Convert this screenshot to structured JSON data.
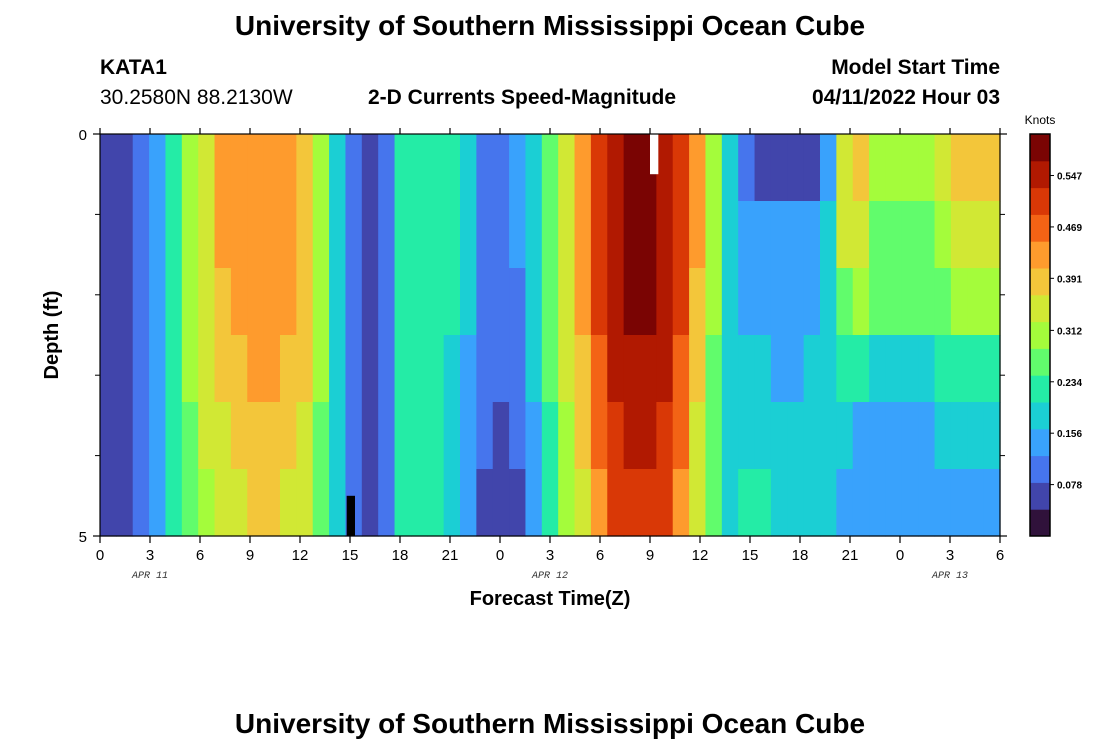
{
  "titles": {
    "main": "University of Southern Mississippi Ocean Cube",
    "repeat": "University of Southern Mississippi Ocean Cube"
  },
  "header": {
    "station": "KATA1",
    "coords": "30.2580N  88.2130W",
    "product": "2-D Currents Speed-Magnitude",
    "start_label": "Model Start Time",
    "start_value": "04/11/2022 Hour 03"
  },
  "chart_data": {
    "type": "heatmap",
    "title": "2-D Currents Speed-Magnitude",
    "xlabel": "Forecast Time(Z)",
    "ylabel": "Depth (ft)",
    "x_ticks": [
      "0",
      "3",
      "6",
      "9",
      "12",
      "15",
      "18",
      "21",
      "0",
      "3",
      "6",
      "9",
      "12",
      "15",
      "18",
      "21",
      "0",
      "3",
      "6"
    ],
    "x_range_hours": [
      0,
      54
    ],
    "date_labels": [
      {
        "text": "APR 11",
        "hour": 3
      },
      {
        "text": "APR 12",
        "hour": 27
      },
      {
        "text": "APR 13",
        "hour": 51
      }
    ],
    "y_range": [
      0,
      5
    ],
    "y_tick_labels": [
      {
        "value": 0,
        "label": "0"
      },
      {
        "value": 5,
        "label": "5"
      }
    ],
    "y_minor_ticks": [
      1,
      2,
      3,
      4
    ],
    "colorbar": {
      "unit": "Knots",
      "min": 0,
      "max": 0.61,
      "ticks": [
        "0.547",
        "0.469",
        "0.391",
        "0.312",
        "0.234",
        "0.156",
        "0.078"
      ],
      "colors": [
        "#30123b",
        "#4145ab",
        "#4675ed",
        "#39a2fc",
        "#1bcfd4",
        "#24eca6",
        "#61fc6c",
        "#a4fc3b",
        "#d1e834",
        "#f3c63a",
        "#fe9b2d",
        "#f36315",
        "#d93806",
        "#b11901",
        "#7a0403"
      ]
    },
    "depth_layers": [
      [
        0.05,
        0.08,
        0.11,
        0.15,
        0.22,
        0.3,
        0.36,
        0.41,
        0.43,
        0.44,
        0.44,
        0.43,
        0.4,
        0.3,
        0.2,
        0.09,
        0.07,
        0.12,
        0.22,
        0.23,
        0.23,
        0.21,
        0.17,
        0.12,
        0.1,
        0.13,
        0.2,
        0.27,
        0.36,
        0.43,
        0.51,
        0.56,
        0.58,
        0.58,
        0.56,
        0.51,
        0.41,
        0.3,
        0.2,
        0.12,
        0.08,
        0.06,
        0.05,
        0.07,
        0.14,
        0.34,
        0.38,
        0.32,
        0.3,
        0.32,
        0.3,
        0.34,
        0.38,
        0.4,
        0.4
      ],
      [
        0.05,
        0.08,
        0.11,
        0.15,
        0.22,
        0.3,
        0.36,
        0.41,
        0.43,
        0.44,
        0.44,
        0.43,
        0.4,
        0.3,
        0.2,
        0.09,
        0.07,
        0.12,
        0.22,
        0.23,
        0.23,
        0.21,
        0.17,
        0.12,
        0.1,
        0.13,
        0.2,
        0.27,
        0.36,
        0.43,
        0.51,
        0.56,
        0.58,
        0.58,
        0.56,
        0.51,
        0.41,
        0.3,
        0.2,
        0.14,
        0.14,
        0.14,
        0.13,
        0.14,
        0.19,
        0.33,
        0.34,
        0.27,
        0.26,
        0.27,
        0.27,
        0.3,
        0.33,
        0.35,
        0.35
      ],
      [
        0.05,
        0.08,
        0.11,
        0.15,
        0.22,
        0.3,
        0.35,
        0.4,
        0.42,
        0.43,
        0.43,
        0.42,
        0.39,
        0.3,
        0.2,
        0.09,
        0.07,
        0.12,
        0.22,
        0.23,
        0.23,
        0.21,
        0.17,
        0.12,
        0.1,
        0.12,
        0.19,
        0.26,
        0.35,
        0.42,
        0.5,
        0.55,
        0.57,
        0.57,
        0.55,
        0.5,
        0.4,
        0.29,
        0.2,
        0.15,
        0.15,
        0.14,
        0.14,
        0.15,
        0.19,
        0.28,
        0.29,
        0.26,
        0.25,
        0.26,
        0.26,
        0.28,
        0.3,
        0.31,
        0.31
      ],
      [
        0.05,
        0.08,
        0.11,
        0.15,
        0.22,
        0.29,
        0.34,
        0.38,
        0.4,
        0.41,
        0.41,
        0.4,
        0.37,
        0.29,
        0.19,
        0.09,
        0.07,
        0.12,
        0.21,
        0.22,
        0.22,
        0.2,
        0.16,
        0.11,
        0.09,
        0.11,
        0.18,
        0.25,
        0.33,
        0.4,
        0.48,
        0.53,
        0.55,
        0.55,
        0.53,
        0.48,
        0.38,
        0.28,
        0.19,
        0.17,
        0.17,
        0.16,
        0.16,
        0.17,
        0.19,
        0.22,
        0.22,
        0.2,
        0.19,
        0.2,
        0.2,
        0.21,
        0.22,
        0.22,
        0.22
      ],
      [
        0.05,
        0.08,
        0.11,
        0.15,
        0.22,
        0.28,
        0.33,
        0.36,
        0.38,
        0.39,
        0.39,
        0.38,
        0.35,
        0.28,
        0.19,
        0.09,
        0.07,
        0.12,
        0.21,
        0.22,
        0.22,
        0.2,
        0.16,
        0.1,
        0.07,
        0.09,
        0.16,
        0.23,
        0.31,
        0.38,
        0.46,
        0.51,
        0.53,
        0.53,
        0.51,
        0.46,
        0.36,
        0.27,
        0.19,
        0.2,
        0.2,
        0.19,
        0.19,
        0.19,
        0.18,
        0.17,
        0.16,
        0.15,
        0.15,
        0.16,
        0.16,
        0.17,
        0.17,
        0.17,
        0.17
      ],
      [
        0.05,
        0.08,
        0.11,
        0.15,
        0.22,
        0.27,
        0.31,
        0.34,
        0.36,
        0.37,
        0.37,
        0.36,
        0.33,
        0.27,
        0.18,
        0.09,
        0.07,
        0.12,
        0.21,
        0.22,
        0.22,
        0.19,
        0.15,
        0.08,
        0.05,
        0.07,
        0.14,
        0.21,
        0.29,
        0.36,
        0.44,
        0.49,
        0.51,
        0.51,
        0.49,
        0.44,
        0.34,
        0.26,
        0.19,
        0.22,
        0.22,
        0.2,
        0.2,
        0.19,
        0.18,
        0.16,
        0.15,
        0.13,
        0.13,
        0.14,
        0.14,
        0.15,
        0.15,
        0.15,
        0.15
      ]
    ],
    "missing_cells": [
      {
        "hour_start": 33,
        "hour_end": 33.5,
        "depth_from": 0,
        "depth_to": 0.5,
        "color": "#ffffff"
      },
      {
        "hour_start": 14.8,
        "hour_end": 15.3,
        "depth_from": 4.5,
        "depth_to": 5,
        "color": "#000000"
      }
    ]
  }
}
